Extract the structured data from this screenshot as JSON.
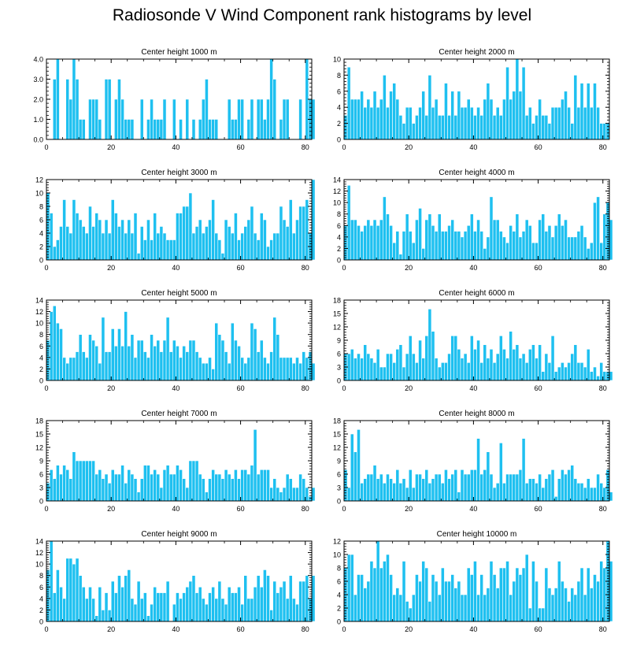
{
  "title": "Radiosonde V Wind Component rank histograms by level",
  "colors": {
    "bar": "#1ec0f0",
    "bar_edge": "#ffffff",
    "axis": "#000000"
  },
  "chart_data": [
    {
      "type": "bar",
      "title": "Center height 1000 m",
      "xlim": [
        0,
        82
      ],
      "ylim": [
        0,
        4
      ],
      "yticks": [
        "0.0",
        "1.0",
        "2.0",
        "3.0",
        "4.0"
      ],
      "xticks": [
        "0",
        "20",
        "40",
        "60",
        "80"
      ],
      "values": [
        0,
        0,
        3,
        4,
        0,
        0,
        3,
        2,
        4,
        3,
        1,
        1,
        0,
        2,
        2,
        2,
        1,
        0,
        3,
        3,
        0,
        2,
        3,
        2,
        1,
        1,
        1,
        0,
        0,
        2,
        0,
        1,
        2,
        1,
        1,
        1,
        2,
        0,
        0,
        2,
        0,
        1,
        0,
        2,
        0,
        1,
        0,
        1,
        2,
        3,
        1,
        1,
        1,
        0,
        0,
        0,
        2,
        1,
        1,
        2,
        2,
        0,
        1,
        2,
        0,
        2,
        2,
        1,
        2,
        4,
        3,
        0,
        1,
        2,
        2,
        0,
        0,
        0,
        2,
        0,
        4,
        2,
        2
      ]
    },
    {
      "type": "bar",
      "title": "Center height 2000 m",
      "xlim": [
        0,
        82
      ],
      "ylim": [
        0,
        10
      ],
      "yticks": [
        "0",
        "2",
        "4",
        "6",
        "8",
        "10"
      ],
      "xticks": [
        "0",
        "20",
        "40",
        "60",
        "80"
      ],
      "values": [
        3,
        9,
        5,
        5,
        5,
        6,
        4,
        5,
        4,
        6,
        4,
        5,
        8,
        4,
        6,
        7,
        5,
        3,
        2,
        4,
        4,
        2,
        3,
        4,
        6,
        3,
        8,
        4,
        5,
        3,
        3,
        7,
        3,
        6,
        3,
        6,
        4,
        4,
        5,
        4,
        3,
        4,
        3,
        5,
        7,
        5,
        3,
        4,
        3,
        5,
        9,
        5,
        6,
        10,
        6,
        9,
        3,
        4,
        2,
        3,
        5,
        3,
        3,
        2,
        4,
        4,
        4,
        5,
        6,
        4,
        2,
        8,
        4,
        7,
        4,
        7,
        4,
        7,
        4,
        2,
        2,
        2
      ]
    },
    {
      "type": "bar",
      "title": "Center height 3000 m",
      "xlim": [
        0,
        82
      ],
      "ylim": [
        0,
        12
      ],
      "yticks": [
        "0",
        "2",
        "4",
        "6",
        "8",
        "10",
        "12"
      ],
      "xticks": [
        "0",
        "20",
        "40",
        "60",
        "80"
      ],
      "values": [
        10,
        7,
        2,
        3,
        5,
        9,
        5,
        4,
        9,
        7,
        6,
        5,
        4,
        8,
        5,
        7,
        6,
        4,
        6,
        4,
        9,
        7,
        5,
        6,
        4,
        6,
        4,
        7,
        1,
        5,
        3,
        6,
        3,
        7,
        4,
        5,
        4,
        3,
        3,
        3,
        7,
        7,
        8,
        8,
        10,
        4,
        5,
        6,
        4,
        5,
        6,
        9,
        4,
        3,
        1,
        6,
        5,
        4,
        7,
        3,
        4,
        5,
        6,
        8,
        4,
        3,
        7,
        6,
        2,
        3,
        4,
        4,
        8,
        6,
        5,
        9,
        4,
        6,
        8,
        8,
        9,
        4,
        12
      ]
    },
    {
      "type": "bar",
      "title": "Center height 4000 m",
      "xlim": [
        0,
        82
      ],
      "ylim": [
        0,
        14
      ],
      "yticks": [
        "0",
        "2",
        "4",
        "6",
        "8",
        "10",
        "12",
        "14"
      ],
      "xticks": [
        "0",
        "20",
        "40",
        "60",
        "80"
      ],
      "values": [
        6,
        13,
        7,
        7,
        6,
        5,
        6,
        7,
        6,
        7,
        6,
        7,
        11,
        8,
        6,
        3,
        5,
        1,
        5,
        8,
        5,
        3,
        7,
        9,
        2,
        7,
        8,
        6,
        5,
        8,
        5,
        5,
        6,
        7,
        5,
        5,
        4,
        5,
        6,
        8,
        5,
        7,
        5,
        2,
        4,
        11,
        7,
        7,
        5,
        4,
        3,
        6,
        5,
        8,
        4,
        5,
        7,
        6,
        3,
        3,
        7,
        8,
        5,
        6,
        4,
        6,
        8,
        6,
        7,
        4,
        4,
        4,
        5,
        6,
        4,
        2,
        3,
        10,
        11,
        3,
        8,
        10,
        7
      ]
    },
    {
      "type": "bar",
      "title": "Center height 5000 m",
      "xlim": [
        0,
        82
      ],
      "ylim": [
        0,
        14
      ],
      "yticks": [
        "0",
        "2",
        "4",
        "6",
        "8",
        "10",
        "12",
        "14"
      ],
      "xticks": [
        "0",
        "20",
        "40",
        "60",
        "80"
      ],
      "values": [
        7,
        12,
        13,
        10,
        9,
        4,
        3,
        4,
        4,
        5,
        8,
        5,
        4,
        8,
        7,
        6,
        3,
        11,
        5,
        5,
        9,
        6,
        9,
        6,
        12,
        6,
        8,
        4,
        7,
        7,
        5,
        4,
        8,
        6,
        7,
        5,
        7,
        11,
        5,
        7,
        6,
        4,
        6,
        5,
        7,
        7,
        5,
        4,
        3,
        3,
        4,
        2,
        10,
        8,
        7,
        5,
        3,
        10,
        7,
        6,
        4,
        3,
        4,
        10,
        9,
        5,
        7,
        4,
        3,
        5,
        11,
        8,
        4,
        4,
        4,
        4,
        3,
        4,
        3,
        5,
        4,
        5,
        3
      ]
    },
    {
      "type": "bar",
      "title": "Center height 6000 m",
      "xlim": [
        0,
        82
      ],
      "ylim": [
        0,
        18
      ],
      "yticks": [
        "0",
        "3",
        "6",
        "9",
        "12",
        "15",
        "18"
      ],
      "xticks": [
        "0",
        "20",
        "40",
        "60",
        "80"
      ],
      "values": [
        6,
        6,
        7,
        5,
        6,
        5,
        8,
        6,
        5,
        4,
        7,
        3,
        3,
        6,
        6,
        4,
        7,
        8,
        3,
        6,
        10,
        6,
        4,
        9,
        5,
        10,
        16,
        11,
        5,
        3,
        4,
        4,
        6,
        10,
        10,
        7,
        5,
        6,
        4,
        10,
        7,
        9,
        4,
        8,
        5,
        7,
        4,
        6,
        10,
        7,
        5,
        11,
        7,
        8,
        5,
        6,
        4,
        7,
        8,
        5,
        8,
        2,
        6,
        4,
        10,
        2,
        3,
        4,
        3,
        4,
        6,
        8,
        4,
        4,
        3,
        7,
        2,
        3,
        1,
        4,
        2,
        2,
        2
      ]
    },
    {
      "type": "bar",
      "title": "Center height 7000 m",
      "xlim": [
        0,
        82
      ],
      "ylim": [
        0,
        18
      ],
      "yticks": [
        "0",
        "3",
        "6",
        "9",
        "12",
        "15",
        "18"
      ],
      "xticks": [
        "0",
        "20",
        "40",
        "60",
        "80"
      ],
      "values": [
        4,
        7,
        5,
        8,
        6,
        8,
        7,
        5,
        11,
        9,
        9,
        9,
        9,
        9,
        9,
        6,
        7,
        5,
        6,
        4,
        7,
        6,
        6,
        8,
        4,
        7,
        6,
        5,
        2,
        5,
        8,
        8,
        6,
        7,
        6,
        3,
        7,
        8,
        6,
        6,
        8,
        7,
        5,
        3,
        9,
        9,
        9,
        6,
        5,
        2,
        5,
        7,
        6,
        6,
        5,
        7,
        6,
        5,
        7,
        5,
        7,
        7,
        6,
        8,
        16,
        6,
        7,
        7,
        7,
        3,
        5,
        3,
        2,
        3,
        6,
        5,
        3,
        3,
        6,
        5,
        3,
        1,
        3
      ]
    },
    {
      "type": "bar",
      "title": "Center height 8000 m",
      "xlim": [
        0,
        82
      ],
      "ylim": [
        0,
        18
      ],
      "yticks": [
        "0",
        "3",
        "6",
        "9",
        "12",
        "15",
        "18"
      ],
      "xticks": [
        "0",
        "20",
        "40",
        "60",
        "80"
      ],
      "values": [
        7,
        3,
        15,
        11,
        16,
        4,
        5,
        6,
        6,
        8,
        5,
        6,
        4,
        6,
        5,
        4,
        7,
        4,
        5,
        3,
        7,
        3,
        6,
        6,
        5,
        7,
        4,
        5,
        6,
        6,
        4,
        7,
        5,
        6,
        7,
        2,
        7,
        6,
        6,
        7,
        7,
        14,
        6,
        7,
        11,
        6,
        3,
        4,
        13,
        4,
        6,
        6,
        6,
        6,
        7,
        14,
        4,
        5,
        5,
        4,
        6,
        3,
        5,
        6,
        7,
        1,
        5,
        7,
        6,
        7,
        8,
        5,
        4,
        4,
        3,
        5,
        3,
        3,
        6,
        4,
        3,
        7,
        2
      ]
    },
    {
      "type": "bar",
      "title": "Center height 9000 m",
      "xlim": [
        0,
        82
      ],
      "ylim": [
        0,
        14
      ],
      "yticks": [
        "0",
        "2",
        "4",
        "6",
        "8",
        "10",
        "12",
        "14"
      ],
      "xticks": [
        "0",
        "20",
        "40",
        "60",
        "80"
      ],
      "values": [
        9,
        14,
        5,
        9,
        6,
        4,
        11,
        11,
        10,
        11,
        8,
        6,
        4,
        6,
        4,
        1,
        6,
        2,
        5,
        2,
        7,
        5,
        8,
        6,
        8,
        9,
        4,
        3,
        7,
        4,
        5,
        1,
        3,
        6,
        5,
        5,
        5,
        7,
        0,
        3,
        5,
        4,
        5,
        6,
        7,
        8,
        5,
        6,
        4,
        3,
        5,
        6,
        4,
        7,
        4,
        3,
        6,
        5,
        5,
        6,
        3,
        8,
        4,
        4,
        6,
        8,
        6,
        9,
        8,
        2,
        7,
        5,
        6,
        7,
        4,
        8,
        4,
        3,
        7,
        7,
        8,
        4,
        8
      ]
    },
    {
      "type": "bar",
      "title": "Center height 10000 m",
      "xlim": [
        0,
        82
      ],
      "ylim": [
        0,
        12
      ],
      "yticks": [
        "0",
        "2",
        "4",
        "6",
        "8",
        "10",
        "12"
      ],
      "xticks": [
        "0",
        "20",
        "40",
        "60",
        "80"
      ],
      "values": [
        8,
        10,
        10,
        4,
        7,
        7,
        5,
        6,
        9,
        8,
        12,
        8,
        9,
        10,
        7,
        4,
        5,
        4,
        9,
        3,
        2,
        4,
        7,
        6,
        9,
        8,
        3,
        7,
        6,
        4,
        8,
        6,
        6,
        7,
        5,
        6,
        4,
        4,
        8,
        7,
        9,
        4,
        7,
        4,
        5,
        9,
        7,
        5,
        8,
        8,
        9,
        4,
        6,
        8,
        7,
        8,
        10,
        2,
        9,
        6,
        2,
        2,
        8,
        5,
        4,
        5,
        9,
        6,
        5,
        3,
        5,
        4,
        6,
        8,
        4,
        8,
        5,
        7,
        6,
        9,
        8,
        12,
        9
      ]
    }
  ]
}
